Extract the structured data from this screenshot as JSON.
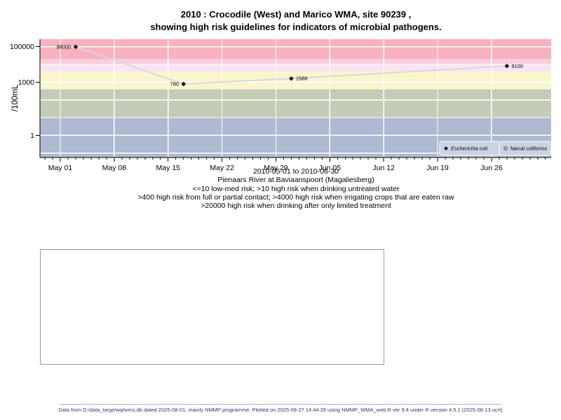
{
  "title": {
    "line1": "2010 : Crocodile (West) and Marico WMA, site 90239 ,",
    "line2": "showing high risk guidelines for indicators of microbial pathogens."
  },
  "subtitle": {
    "lines": [
      "2010-05-01 to 2010-06-30",
      "Pienaars River at Baviaanspoort (Magaliesberg)",
      "<=10 low-med risk; >10 high risk when drinking untreated water",
      ">400 high risk from full or partial contact; >4000 high risk when irrigating crops that are eaten raw",
      ">20000 high risk when drinking after only limited treatment"
    ]
  },
  "chart_data": {
    "type": "line",
    "yscale": "log",
    "ylabel": "/100mL",
    "date_range": [
      "2010-05-01",
      "2010-06-30"
    ],
    "ylim": [
      0.056,
      265000
    ],
    "grid": true,
    "grid_color": "#ffffff",
    "x_ticks": [
      {
        "day": 0,
        "label": "May 01"
      },
      {
        "day": 7,
        "label": "May 08"
      },
      {
        "day": 14,
        "label": "May 15"
      },
      {
        "day": 21,
        "label": "May 22"
      },
      {
        "day": 28,
        "label": "May 29"
      },
      {
        "day": 35,
        "label": "Jun 05"
      },
      {
        "day": 42,
        "label": "Jun 12"
      },
      {
        "day": 49,
        "label": "Jun 19"
      },
      {
        "day": 56,
        "label": "Jun 26"
      }
    ],
    "y_ticks": [
      {
        "value": 1,
        "label": "1"
      },
      {
        "value": 1000,
        "label": "1000"
      },
      {
        "value": 100000,
        "label": "100000"
      }
    ],
    "grid_decades": [
      0.1,
      1,
      10,
      100,
      1000,
      10000,
      100000
    ],
    "series": [
      {
        "name": "Escherichia coli",
        "marker": "filled-diamond",
        "line_color": "#d8d8d8",
        "marker_color": "#1a1a1a",
        "points": [
          {
            "date": "2010-05-03",
            "value": 98000,
            "label": "98000",
            "label_side": "left"
          },
          {
            "date": "2010-05-17",
            "value": 780,
            "label": "780",
            "label_side": "left"
          },
          {
            "date": "2010-05-31",
            "value": 1588,
            "label": "1588",
            "label_side": "right"
          },
          {
            "date": "2010-06-28",
            "value": 8100,
            "label": "8100",
            "label_side": "right"
          }
        ]
      },
      {
        "name": "faecal coliforms",
        "marker": "open-circle",
        "points": []
      }
    ],
    "guideline_bands": [
      {
        "from": "bottom",
        "to": 10,
        "color": "#aebad1"
      },
      {
        "from": 10,
        "to": 400,
        "color": "#c4ccb8"
      },
      {
        "from": 400,
        "to": 4000,
        "color": "#fbf5cd"
      },
      {
        "from": 4000,
        "to": 10000,
        "color": "#fae3f2"
      },
      {
        "from": 10000,
        "to": 20000,
        "color": "#f8cfdd"
      },
      {
        "from": 20000,
        "to": "top",
        "color": "#f8b1c0"
      }
    ],
    "legend": {
      "position": "bottom-right",
      "box_fill": "#c9d3e3",
      "box_border": "#ffffff",
      "items": [
        {
          "label": "Escherichia coli",
          "marker": "filled-diamond",
          "italic": true
        },
        {
          "label": "faecal coliforms",
          "marker": "open-circle",
          "italic": false
        }
      ]
    }
  },
  "footer": {
    "text": "Data from D:/data_large/wq/wms.db dated 2025-08-01, mainly NMMP programme. Plotted on 2025-09-27 14:44:26 using NMMP_WMA_web.R ver 9.4 under R version 4.5.1 (2025-06-13 ucrt)"
  }
}
